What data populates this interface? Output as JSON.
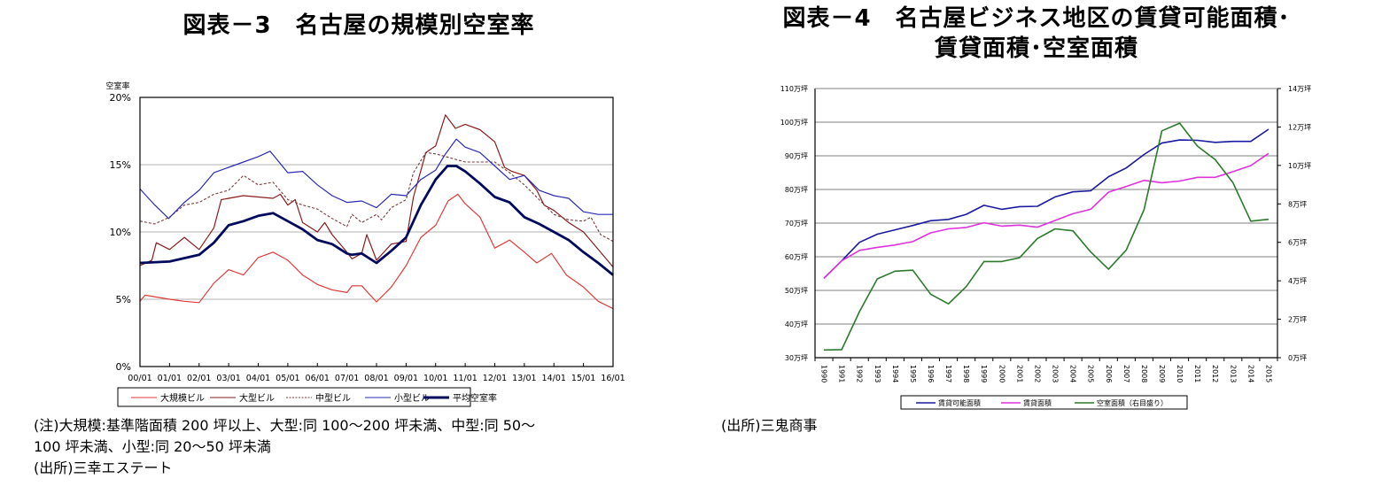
{
  "titles": {
    "chart3": "図表－3　名古屋の規模別空室率",
    "chart4_line1": "図表－4　名古屋ビジネス地区の賃貸可能面積･",
    "chart4_line2": "賃貸面積･空室面積"
  },
  "notes": {
    "chart3_note_line1": "(注)大規模:基準階面積 200 坪以上、大型:同 100～200 坪未満、中型:同 50～",
    "chart3_note_line2": "100 坪未満、小型:同 20～50 坪未満",
    "chart3_source": "(出所)三幸エステート",
    "chart4_source": "(出所)三鬼商事"
  },
  "chart_data": [
    {
      "type": "line",
      "title": "図表－3　名古屋の規模別空室率",
      "ylabel": "空室率",
      "xlabel": "",
      "ylim": [
        0,
        20
      ],
      "yticks": [
        "0%",
        "5%",
        "10%",
        "15%",
        "20%"
      ],
      "ytick_values": [
        0,
        5,
        10,
        15,
        20
      ],
      "xlim": [
        2000,
        2016
      ],
      "xticks": [
        "00/01",
        "01/01",
        "02/01",
        "03/01",
        "04/01",
        "05/01",
        "06/01",
        "07/01",
        "08/01",
        "09/01",
        "10/01",
        "11/01",
        "12/01",
        "13/01",
        "14/01",
        "15/01",
        "16/01"
      ],
      "grid": true,
      "legend_position": "bottom",
      "series": [
        {
          "name": "大規模ビル",
          "color": "#e03a3a",
          "style": "solid",
          "width": 1.2,
          "x": [
            2000.0,
            2000.17,
            2001.0,
            2001.5,
            2002.0,
            2002.5,
            2003.0,
            2003.5,
            2004.0,
            2004.5,
            2005.0,
            2005.5,
            2006.0,
            2006.5,
            2007.0,
            2007.17,
            2007.5,
            2008.0,
            2008.5,
            2009.0,
            2009.5,
            2010.0,
            2010.42,
            2010.75,
            2011.0,
            2011.5,
            2012.0,
            2012.5,
            2013.0,
            2013.42,
            2013.92,
            2014.42,
            2015.0,
            2015.5,
            2016.0
          ],
          "y": [
            4.85,
            5.3,
            5.0,
            4.85,
            4.75,
            6.2,
            7.2,
            6.8,
            8.1,
            8.5,
            7.9,
            6.8,
            6.1,
            5.7,
            5.5,
            6.0,
            6.0,
            4.8,
            5.9,
            7.5,
            9.6,
            10.5,
            12.3,
            12.8,
            12.1,
            11.1,
            8.8,
            9.4,
            8.5,
            7.7,
            8.4,
            6.8,
            5.9,
            4.85,
            4.3
          ]
        },
        {
          "name": "大型ビル",
          "color": "#8b1c1c",
          "style": "solid",
          "width": 1.2,
          "x": [
            2000.0,
            2000.4,
            2000.55,
            2001.0,
            2001.5,
            2002.0,
            2002.5,
            2002.75,
            2003.0,
            2003.5,
            2004.0,
            2004.5,
            2004.75,
            2005.0,
            2005.25,
            2005.5,
            2006.0,
            2006.25,
            2006.5,
            2007.0,
            2007.17,
            2007.5,
            2007.67,
            2008.0,
            2008.5,
            2009.0,
            2009.25,
            2009.67,
            2010.0,
            2010.33,
            2010.67,
            2011.0,
            2011.5,
            2012.0,
            2012.33,
            2012.58,
            2013.0,
            2013.42,
            2013.67,
            2014.0,
            2014.5,
            2015.0,
            2015.5,
            2016.0
          ],
          "y": [
            7.5,
            7.9,
            9.2,
            8.7,
            9.6,
            8.7,
            10.3,
            12.4,
            12.5,
            12.7,
            12.6,
            12.5,
            12.8,
            12.0,
            12.4,
            10.7,
            10.0,
            10.7,
            9.8,
            8.5,
            8.0,
            8.4,
            9.8,
            7.9,
            9.1,
            9.3,
            12.6,
            15.9,
            16.4,
            18.7,
            17.7,
            18.0,
            17.6,
            16.7,
            14.8,
            14.5,
            14.2,
            13.1,
            12.0,
            11.6,
            10.7,
            10.0,
            8.7,
            7.4
          ]
        },
        {
          "name": "中型ビル",
          "color": "#7a3b3b",
          "style": "dashed",
          "width": 1.1,
          "x": [
            2000.0,
            2000.5,
            2001.0,
            2001.5,
            2002.0,
            2002.5,
            2003.0,
            2003.5,
            2004.0,
            2004.5,
            2005.0,
            2005.5,
            2006.0,
            2006.5,
            2007.0,
            2007.17,
            2007.5,
            2008.0,
            2008.17,
            2008.5,
            2009.0,
            2009.25,
            2009.67,
            2010.0,
            2011.0,
            2011.5,
            2012.0,
            2012.5,
            2013.0,
            2013.5,
            2014.0,
            2014.5,
            2015.0,
            2015.25,
            2015.58,
            2016.0
          ],
          "y": [
            10.8,
            10.6,
            11.1,
            12.0,
            12.2,
            12.8,
            13.1,
            14.2,
            13.5,
            13.7,
            12.4,
            12.0,
            11.7,
            11.0,
            10.4,
            11.3,
            10.7,
            11.3,
            10.9,
            11.8,
            12.4,
            14.4,
            15.9,
            15.8,
            15.2,
            15.2,
            15.2,
            14.4,
            13.5,
            12.4,
            11.3,
            10.9,
            10.8,
            11.1,
            9.8,
            9.3
          ]
        },
        {
          "name": "小型ビル",
          "color": "#2a2ab5",
          "style": "solid",
          "width": 1.2,
          "x": [
            2000.0,
            2000.5,
            2000.97,
            2001.5,
            2002.0,
            2002.5,
            2003.0,
            2003.5,
            2004.0,
            2004.4,
            2005.0,
            2005.5,
            2006.0,
            2006.5,
            2007.0,
            2007.5,
            2008.0,
            2008.5,
            2009.0,
            2009.5,
            2010.0,
            2010.3,
            2010.7,
            2011.0,
            2011.5,
            2012.0,
            2012.5,
            2013.0,
            2013.5,
            2014.0,
            2014.5,
            2015.0,
            2015.5,
            2016.0
          ],
          "y": [
            13.2,
            12.0,
            11.0,
            12.2,
            13.1,
            14.4,
            14.8,
            15.2,
            15.6,
            16.0,
            14.4,
            14.5,
            13.5,
            12.7,
            12.2,
            12.3,
            11.8,
            12.8,
            12.7,
            13.9,
            14.6,
            15.7,
            16.9,
            16.3,
            15.9,
            14.9,
            13.9,
            14.2,
            13.1,
            12.7,
            12.5,
            11.5,
            11.3,
            11.3
          ]
        },
        {
          "name": "平均空室率",
          "color": "#000a5c",
          "style": "solid",
          "width": 2.8,
          "x": [
            2000.0,
            2001.0,
            2002.0,
            2002.5,
            2003.0,
            2003.5,
            2004.0,
            2004.5,
            2005.0,
            2005.5,
            2006.0,
            2006.5,
            2007.0,
            2007.17,
            2007.5,
            2008.0,
            2008.5,
            2009.0,
            2009.5,
            2010.0,
            2010.4,
            2010.7,
            2011.0,
            2011.5,
            2012.0,
            2012.5,
            2013.0,
            2013.5,
            2014.0,
            2014.5,
            2015.0,
            2015.5,
            2016.0
          ],
          "y": [
            7.7,
            7.8,
            8.3,
            9.2,
            10.5,
            10.8,
            11.2,
            11.4,
            10.8,
            10.2,
            9.4,
            9.1,
            8.4,
            8.3,
            8.4,
            7.7,
            8.6,
            9.6,
            12.0,
            13.9,
            14.9,
            14.9,
            14.5,
            13.6,
            12.6,
            12.2,
            11.1,
            10.6,
            10.0,
            9.4,
            8.5,
            7.7,
            6.8
          ]
        }
      ]
    },
    {
      "type": "line",
      "title": "図表－4　名古屋ビジネス地区の賃貸可能面積･賃貸面積･空室面積",
      "xlabel": "",
      "categories": [
        "1990",
        "1991",
        "1992",
        "1993",
        "1994",
        "1995",
        "1996",
        "1997",
        "1998",
        "1999",
        "2000",
        "2001",
        "2002",
        "2003",
        "2004",
        "2005",
        "2006",
        "2007",
        "2008",
        "2009",
        "2010",
        "2011",
        "2012",
        "2013",
        "2014",
        "2015"
      ],
      "ylim_left": [
        30,
        110
      ],
      "yticks_left": [
        "30万坪",
        "40万坪",
        "50万坪",
        "60万坪",
        "70万坪",
        "80万坪",
        "90万坪",
        "100万坪",
        "110万坪"
      ],
      "ylim_right": [
        0,
        14
      ],
      "yticks_right": [
        "0万坪",
        "2万坪",
        "4万坪",
        "6万坪",
        "8万坪",
        "10万坪",
        "12万坪",
        "14万坪"
      ],
      "grid": true,
      "legend_position": "bottom",
      "series": [
        {
          "name": "賃貸可能面積",
          "axis": "left",
          "color": "#1a1aa0",
          "unit": "万坪",
          "values": [
            53.6,
            58.8,
            64.3,
            66.7,
            68.0,
            69.3,
            70.7,
            71.1,
            72.6,
            75.3,
            74.1,
            74.9,
            75.0,
            77.8,
            79.3,
            79.6,
            83.8,
            86.4,
            90.4,
            93.8,
            94.7,
            94.6,
            94.0,
            94.3,
            94.3,
            97.9
          ]
        },
        {
          "name": "賃貸面積",
          "axis": "left",
          "color": "#dd33dd",
          "unit": "万坪",
          "values": [
            53.6,
            58.8,
            61.9,
            62.8,
            63.5,
            64.5,
            67.1,
            68.3,
            68.7,
            70.1,
            69.1,
            69.4,
            68.8,
            70.8,
            72.8,
            74.1,
            79.2,
            80.9,
            82.7,
            82.0,
            82.5,
            83.6,
            83.6,
            85.3,
            87.1,
            90.7
          ]
        },
        {
          "name": "空室面積（右目盛り）",
          "axis": "right",
          "color": "#2a7a2a",
          "unit": "万坪",
          "values": [
            0.4,
            0.42,
            2.4,
            4.1,
            4.5,
            4.55,
            3.3,
            2.8,
            3.7,
            5.0,
            5.0,
            5.2,
            6.2,
            6.7,
            6.6,
            5.5,
            4.6,
            5.6,
            7.7,
            11.8,
            12.2,
            11.0,
            10.3,
            9.1,
            7.1,
            7.2
          ]
        }
      ]
    }
  ]
}
